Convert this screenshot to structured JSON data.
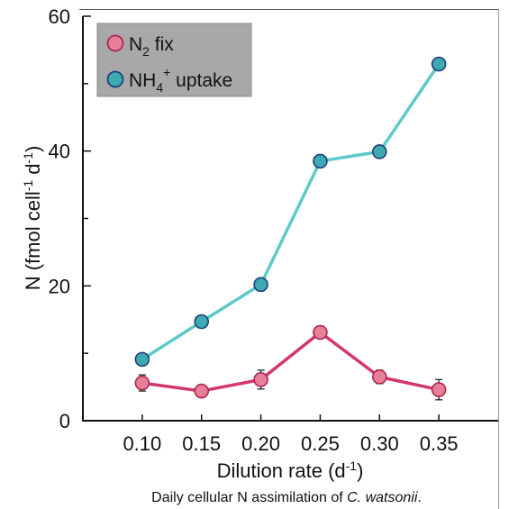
{
  "chart_data": {
    "type": "line",
    "x": [
      0.1,
      0.15,
      0.2,
      0.25,
      0.3,
      0.35
    ],
    "x_tick_labels": [
      "0.10",
      "0.15",
      "0.20",
      "0.25",
      "0.30",
      "0.35"
    ],
    "y_tick_labels": [
      "0",
      "20",
      "40",
      "60"
    ],
    "ylim": [
      0,
      60
    ],
    "xlim": [
      0.05,
      0.4
    ],
    "xlabel": {
      "text": "Dilution rate  (d",
      "sup": "-1",
      "end": ")"
    },
    "ylabel": {
      "p1": "N (fmol cell",
      "s1": "-1",
      "p2": " d",
      "s2": "-1",
      "p3": ")"
    },
    "series": [
      {
        "name": {
          "p1": "N",
          "sub": "2",
          "p2": " fix"
        },
        "color": "#d2366f",
        "marker_fill": "#e77f99",
        "values": [
          5.6,
          4.4,
          6.1,
          13.1,
          6.5,
          4.6
        ],
        "errors": [
          1.2,
          0.8,
          1.4,
          0.5,
          1.0,
          1.5
        ]
      },
      {
        "name": {
          "p1": "NH",
          "sub": "4",
          "sup": "+",
          "p2": " uptake"
        },
        "color": "#5ec9c9",
        "marker_fill": "#3fa9b2",
        "values": [
          9.1,
          14.7,
          20.2,
          38.5,
          39.9,
          52.9
        ],
        "errors": [
          0,
          0,
          0,
          0,
          0,
          0
        ]
      }
    ],
    "legend_position": "top-left",
    "grid": false,
    "caption": {
      "p1": "Daily cellular N assimilation of ",
      "italic": "C. watsonii",
      "p2": "."
    }
  }
}
